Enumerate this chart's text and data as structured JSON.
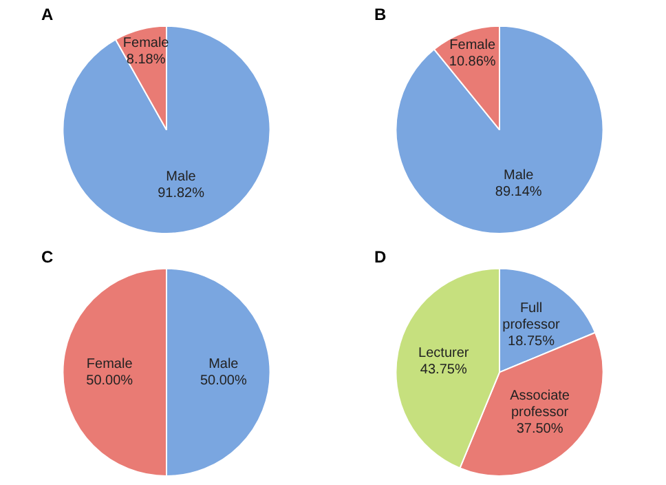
{
  "chart_data": [
    {
      "type": "pie",
      "title": "A",
      "categories": [
        "Male",
        "Female"
      ],
      "values": [
        91.82,
        8.18
      ],
      "colors": [
        "#7aa6e0",
        "#e97b74"
      ],
      "value_labels": [
        "91.82%",
        "8.18%"
      ],
      "legend": false
    },
    {
      "type": "pie",
      "title": "B",
      "categories": [
        "Male",
        "Female"
      ],
      "values": [
        89.14,
        10.86
      ],
      "colors": [
        "#7aa6e0",
        "#e97b74"
      ],
      "value_labels": [
        "89.14%",
        "10.86%"
      ],
      "legend": false
    },
    {
      "type": "pie",
      "title": "C",
      "categories": [
        "Male",
        "Female"
      ],
      "values": [
        50.0,
        50.0
      ],
      "colors": [
        "#7aa6e0",
        "#e97b74"
      ],
      "value_labels": [
        "50.00%",
        "50.00%"
      ],
      "legend": false
    },
    {
      "type": "pie",
      "title": "D",
      "categories": [
        "Full professor",
        "Associate professor",
        "Lecturer"
      ],
      "values": [
        18.75,
        37.5,
        43.75
      ],
      "colors": [
        "#7aa6e0",
        "#e97b74",
        "#c6e07e"
      ],
      "value_labels": [
        "18.75%",
        "37.50%",
        "43.75%"
      ],
      "legend": false
    }
  ]
}
